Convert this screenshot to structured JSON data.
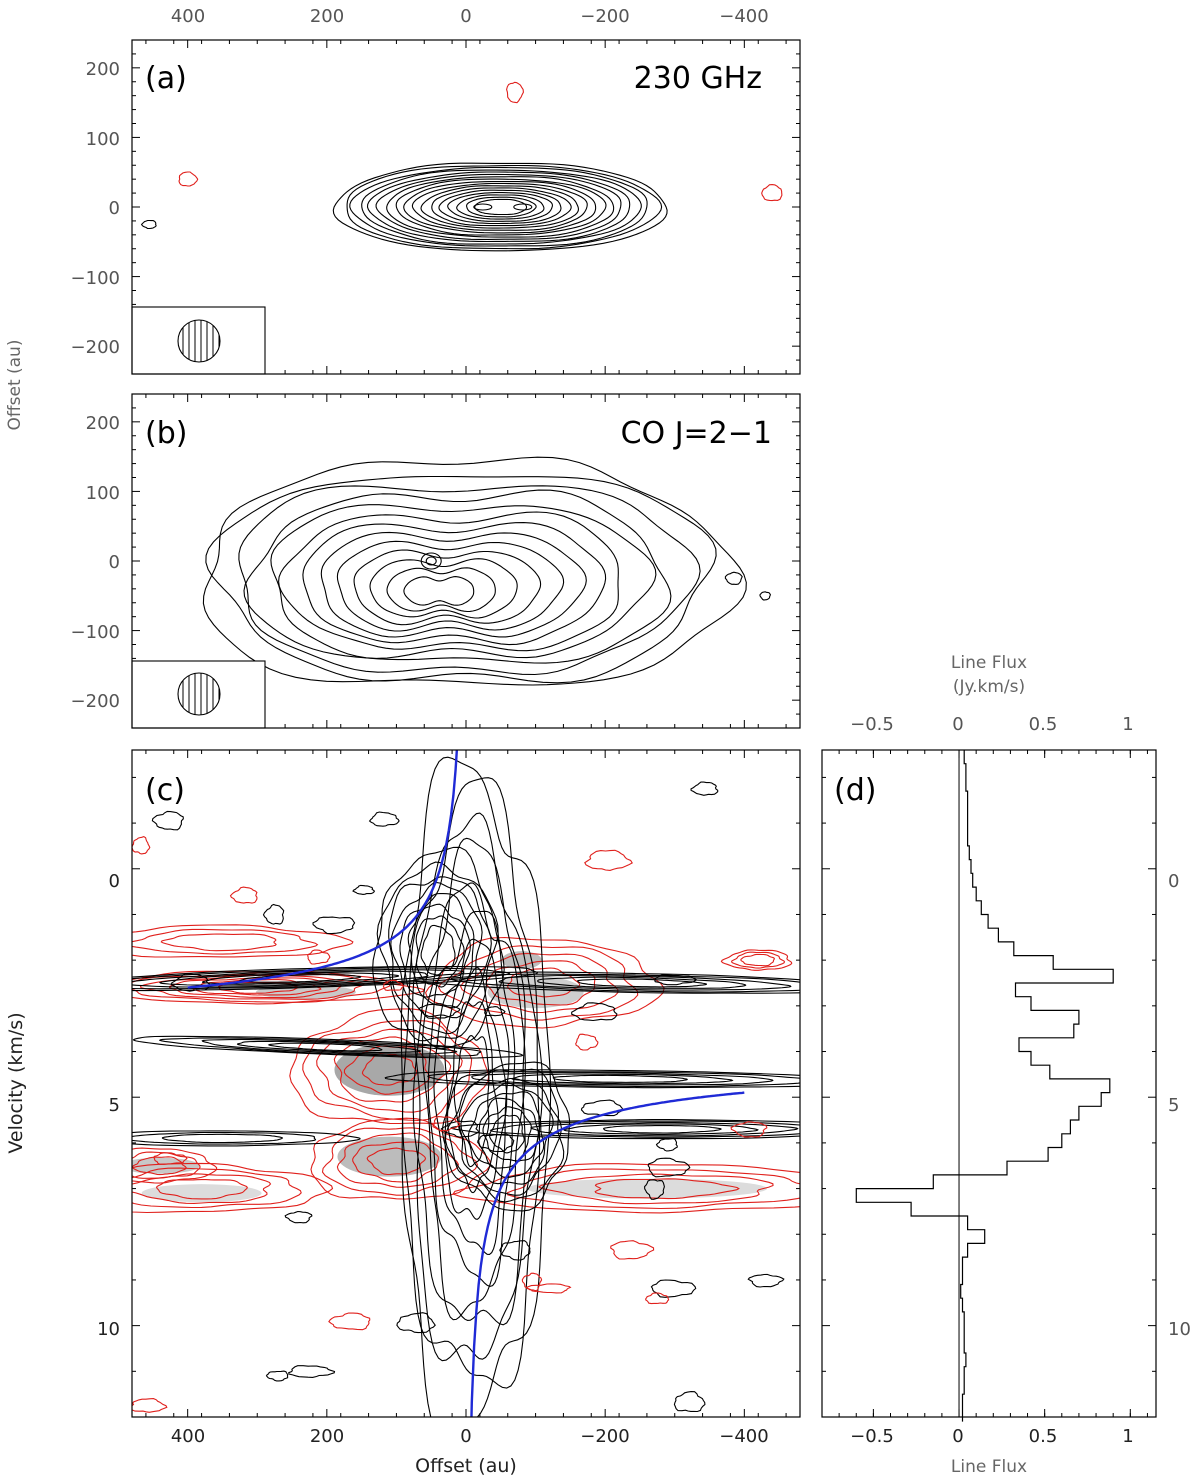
{
  "chart_data": [
    {
      "panel": "(a)",
      "type": "contour",
      "annotation": "230 GHz",
      "x_top_ticks": [
        "400",
        "200",
        "0",
        "−200",
        "−400"
      ],
      "y_ticks": [
        "200",
        "100",
        "0",
        "−100",
        "−200"
      ],
      "xlim": [
        480,
        -480
      ],
      "ylim": [
        -240,
        240
      ],
      "ylabel": "Offset (au)",
      "source": {
        "x": -50,
        "y": 0
      },
      "beam": "hatched-circle"
    },
    {
      "panel": "(b)",
      "type": "contour",
      "annotation": "CO J=2−1",
      "y_ticks": [
        "200",
        "100",
        "0",
        "−100",
        "−200"
      ],
      "xlim": [
        480,
        -480
      ],
      "ylim": [
        -240,
        240
      ],
      "source": {
        "x": 50,
        "y": 0
      },
      "beam": "hatched-circle"
    },
    {
      "panel": "(c)",
      "type": "position-velocity contour",
      "x_ticks": [
        "400",
        "200",
        "0",
        "−200",
        "−400"
      ],
      "xlabel": "Offset (au)",
      "y_ticks": [
        "0",
        "5",
        "10"
      ],
      "ylabel": "Velocity (km/s)",
      "xlim": [
        480,
        -480
      ],
      "ylim": [
        12,
        -2.6
      ],
      "keplerian_curves": "blue"
    },
    {
      "panel": "(d)",
      "type": "histogram",
      "top_label_line1": "Line Flux",
      "top_label_line2": "(Jy.km/s)",
      "xlabel": "Line Flux",
      "x_ticks": [
        "−0.5",
        "0",
        "0.5",
        "1"
      ],
      "y_ticks": [
        "0",
        "5",
        "10"
      ],
      "xlim": [
        -0.8,
        1.15
      ],
      "ylim": [
        12,
        -2.6
      ],
      "velocity": [
        -2.6,
        -2.3,
        -2.0,
        -1.7,
        -1.4,
        -1.1,
        -0.8,
        -0.5,
        -0.2,
        0.1,
        0.4,
        0.7,
        1.0,
        1.3,
        1.6,
        1.9,
        2.2,
        2.5,
        2.8,
        3.1,
        3.4,
        3.7,
        4.0,
        4.3,
        4.6,
        4.9,
        5.2,
        5.5,
        5.8,
        6.1,
        6.4,
        6.7,
        7.0,
        7.3,
        7.6,
        7.9,
        8.2,
        8.5,
        8.8,
        9.1,
        9.4,
        9.7,
        10.0,
        10.3,
        10.6,
        10.9,
        11.2,
        11.5,
        11.8
      ],
      "flux": [
        0.03,
        0.04,
        0.04,
        0.05,
        0.05,
        0.05,
        0.05,
        0.06,
        0.07,
        0.08,
        0.1,
        0.13,
        0.17,
        0.23,
        0.32,
        0.55,
        0.9,
        0.33,
        0.42,
        0.7,
        0.67,
        0.35,
        0.42,
        0.53,
        0.88,
        0.83,
        0.7,
        0.65,
        0.6,
        0.52,
        0.28,
        -0.15,
        -0.6,
        -0.28,
        0.05,
        0.15,
        0.05,
        0.02,
        0.02,
        0.01,
        0.02,
        0.03,
        0.03,
        0.03,
        0.04,
        0.03,
        0.03,
        0.02,
        0.02
      ]
    }
  ]
}
